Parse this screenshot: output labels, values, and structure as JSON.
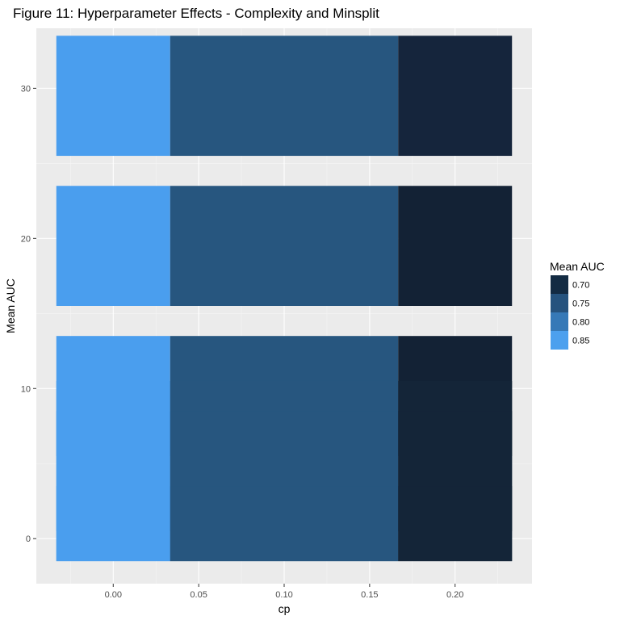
{
  "chart_data": {
    "type": "bar",
    "title": "Figure 11: Hyperparameter Effects - Complexity and Minsplit",
    "xlabel": "cp",
    "ylabel": "Mean AUC",
    "xlim": [
      -0.045,
      0.245
    ],
    "ylim": [
      -3,
      34
    ],
    "x_ticks": [
      "0.00",
      "0.05",
      "0.10",
      "0.15",
      "0.20"
    ],
    "y_ticks": [
      "0",
      "10",
      "20",
      "30"
    ],
    "x_tick_values": [
      0.0,
      0.05,
      0.1,
      0.15,
      0.2
    ],
    "y_tick_values": [
      0,
      10,
      20,
      30
    ],
    "grid": true,
    "legend": {
      "title": "Mean AUC",
      "placement": "right",
      "entries": [
        {
          "label": "0.70",
          "color": "#132B43"
        },
        {
          "label": "0.75",
          "color": "#26537E"
        },
        {
          "label": "0.80",
          "color": "#3679B7"
        },
        {
          "label": "0.85",
          "color": "#4CA0EE"
        }
      ]
    },
    "tiles": [
      {
        "cp_start": -0.0333,
        "cp_end": 0.0333,
        "y_start": 25.5,
        "y_end": 33.5,
        "auc": 0.85,
        "color": "#4A9EEE"
      },
      {
        "cp_start": 0.0333,
        "cp_end": 0.1667,
        "y_start": 25.5,
        "y_end": 33.5,
        "auc": 0.755,
        "color": "#27567F"
      },
      {
        "cp_start": 0.1667,
        "cp_end": 0.2333,
        "y_start": 25.5,
        "y_end": 33.5,
        "auc": 0.705,
        "color": "#15253C"
      },
      {
        "cp_start": -0.0333,
        "cp_end": 0.0333,
        "y_start": 15.5,
        "y_end": 23.5,
        "auc": 0.85,
        "color": "#4A9EEE"
      },
      {
        "cp_start": 0.0333,
        "cp_end": 0.1667,
        "y_start": 15.5,
        "y_end": 23.5,
        "auc": 0.755,
        "color": "#27567F"
      },
      {
        "cp_start": 0.1667,
        "cp_end": 0.2333,
        "y_start": 15.5,
        "y_end": 23.5,
        "auc": 0.7,
        "color": "#132235"
      },
      {
        "cp_start": -0.0333,
        "cp_end": 0.0333,
        "y_start": 5.5,
        "y_end": 13.5,
        "auc": 0.85,
        "color": "#4A9EEE"
      },
      {
        "cp_start": 0.0333,
        "cp_end": 0.1667,
        "y_start": 5.5,
        "y_end": 13.5,
        "auc": 0.755,
        "color": "#27567F"
      },
      {
        "cp_start": 0.1667,
        "cp_end": 0.2333,
        "y_start": 5.5,
        "y_end": 13.5,
        "auc": 0.7,
        "color": "#132235"
      },
      {
        "cp_start": -0.0333,
        "cp_end": 0.0333,
        "y_start": 0.5,
        "y_end": 10.5,
        "auc": 0.85,
        "color": "#4A9EEE"
      },
      {
        "cp_start": 0.0333,
        "cp_end": 0.1667,
        "y_start": 0.5,
        "y_end": 10.5,
        "auc": 0.755,
        "color": "#27567F"
      },
      {
        "cp_start": 0.1667,
        "cp_end": 0.2333,
        "y_start": 0.5,
        "y_end": 10.5,
        "auc": 0.7,
        "color": "#142538"
      },
      {
        "cp_start": -0.0333,
        "cp_end": 0.0333,
        "y_start": -1.5,
        "y_end": 8.5,
        "auc": 0.85,
        "color": "#4A9EEE"
      },
      {
        "cp_start": 0.0333,
        "cp_end": 0.1667,
        "y_start": -1.5,
        "y_end": 8.5,
        "auc": 0.755,
        "color": "#27567F"
      },
      {
        "cp_start": 0.1667,
        "cp_end": 0.2333,
        "y_start": -1.5,
        "y_end": 8.5,
        "auc": 0.7,
        "color": "#142538"
      },
      {
        "cp_start": -0.0333,
        "cp_end": 0.0333,
        "y_start": -1.5,
        "y_end": 3.5,
        "auc": 0.85,
        "color": "#4A9EEE"
      },
      {
        "cp_start": 0.0333,
        "cp_end": 0.1667,
        "y_start": -1.5,
        "y_end": 3.5,
        "auc": 0.755,
        "color": "#27567F"
      },
      {
        "cp_start": 0.1667,
        "cp_end": 0.2333,
        "y_start": -1.5,
        "y_end": 3.5,
        "auc": 0.7,
        "color": "#142538"
      }
    ]
  }
}
